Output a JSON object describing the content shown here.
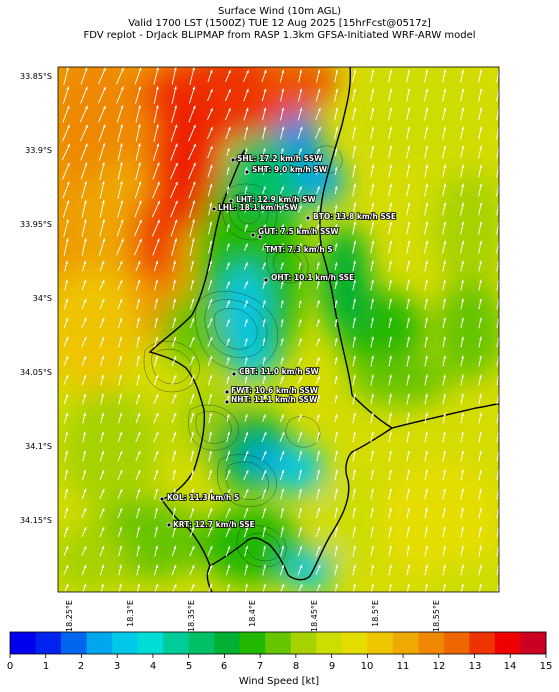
{
  "title": {
    "line1": "Surface Wind (10m AGL)",
    "line2": "Valid 1700 LST (1500Z) TUE 12 Aug 2025 [15hrFcst@0517z]",
    "line3": "FDV replot - DrJack BLIPMAP from RASP 1.3km GFSA-Initiated WRF-ARW model"
  },
  "latitude_labels": [
    "33.85°S",
    "33.9°S",
    "33.95°S",
    "34°S",
    "34.05°S",
    "34.1°S",
    "34.15°S"
  ],
  "longitude_labels": [
    "18.25°E",
    "18.3°E",
    "18.35°E",
    "18.4°E",
    "18.45°E",
    "18.5°E",
    "18.55°E"
  ],
  "stations": [
    {
      "label": "SHL: 17.2 km/h SSW"
    },
    {
      "label": "SHT: 9.0 km/h SW"
    },
    {
      "label": "LHT: 12.9 km/h SW"
    },
    {
      "label": "LHL: 18.1 km/h SW"
    },
    {
      "label": "BTO: 13.8 km/h SSE"
    },
    {
      "label": "GUT: 7.5 km/h SSW"
    },
    {
      "label": "TMT: 7.3 km/h S"
    },
    {
      "label": "OHT: 10.1 km/h SSE"
    },
    {
      "label": "CBT: 11.0 km/h SW"
    },
    {
      "label": "FWT: 10.6 km/h SSW"
    },
    {
      "label": "NHT: 11.1 km/h SSW"
    },
    {
      "label": "KOL: 11.3 km/h S"
    },
    {
      "label": "KRT: 12.7 km/h SSE"
    }
  ],
  "colorbar": {
    "title": "Wind Speed [kt]",
    "ticks": [
      "0",
      "1",
      "2",
      "3",
      "4",
      "5",
      "6",
      "7",
      "8",
      "9",
      "10",
      "11",
      "12",
      "13",
      "14",
      "15"
    ],
    "colors": [
      "#0000ee",
      "#0022ee",
      "#0066ee",
      "#00a6ee",
      "#00c8e8",
      "#00dcd6",
      "#00cc99",
      "#00c066",
      "#00b033",
      "#22b800",
      "#66c400",
      "#a6d200",
      "#ccdd00",
      "#e6dd00",
      "#eec600",
      "#eeaa00",
      "#ee8800",
      "#ee6600",
      "#ee3300",
      "#ee0000",
      "#cc0022"
    ]
  }
}
